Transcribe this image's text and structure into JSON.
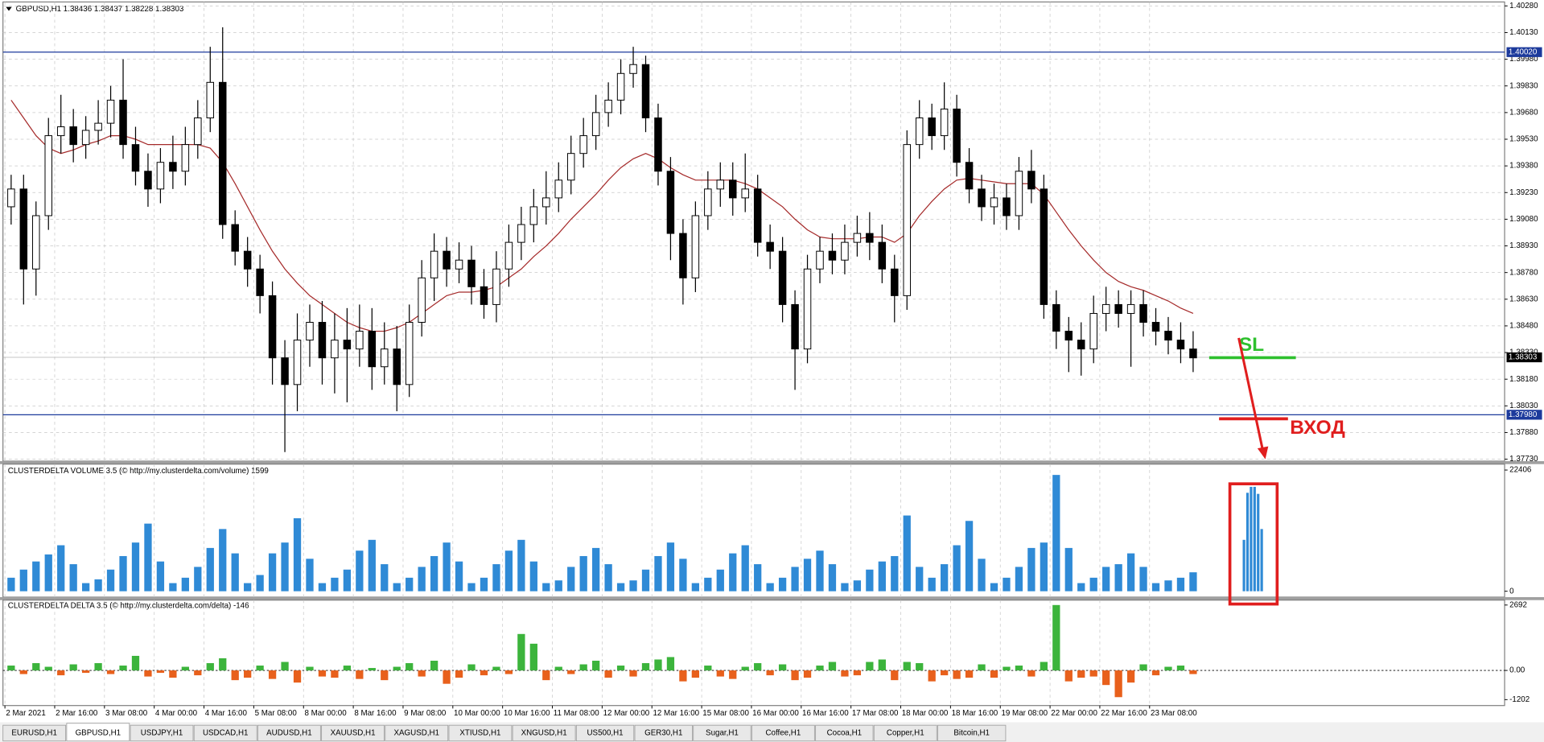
{
  "header": {
    "symbol": "GBPUSD,H1",
    "ohlc": [
      1.38436,
      1.38437,
      1.38228,
      1.38303
    ]
  },
  "chart_data": [
    {
      "type": "candlestick",
      "categories": [
        "2 Mar 2021",
        null,
        null,
        null,
        "2 Mar 16:00",
        null,
        null,
        null,
        "3 Mar 08:00",
        null,
        null,
        null,
        "4 Mar 00:00",
        null,
        null,
        null,
        "4 Mar 16:00",
        null,
        null,
        null,
        "5 Mar 08:00",
        null,
        null,
        null,
        "8 Mar 00:00",
        null,
        null,
        null,
        "8 Mar 16:00",
        null,
        null,
        null,
        "9 Mar 08:00",
        null,
        null,
        null,
        "10 Mar 00:00",
        null,
        null,
        null,
        "10 Mar 16:00",
        null,
        null,
        null,
        "11 Mar 08:00",
        null,
        null,
        null,
        "12 Mar 00:00",
        null,
        null,
        null,
        "12 Mar 16:00",
        null,
        null,
        null,
        "15 Mar 08:00",
        null,
        null,
        null,
        "16 Mar 00:00",
        null,
        null,
        null,
        "16 Mar 16:00",
        null,
        null,
        null,
        "17 Mar 08:00",
        null,
        null,
        null,
        "18 Mar 00:00",
        null,
        null,
        null,
        "18 Mar 16:00",
        null,
        null,
        null,
        "19 Mar 08:00",
        null,
        null,
        null,
        "22 Mar 00:00",
        null,
        null,
        null,
        "22 Mar 16:00",
        null,
        null,
        null,
        "23 Mar 08:00",
        null,
        null,
        null
      ],
      "open": [
        1.3915,
        1.3925,
        1.388,
        1.391,
        1.3955,
        1.396,
        1.395,
        1.3958,
        1.3962,
        1.3975,
        1.395,
        1.3935,
        1.3925,
        1.394,
        1.3935,
        1.395,
        1.3965,
        1.3985,
        1.3905,
        1.389,
        1.388,
        1.3865,
        1.383,
        1.3815,
        1.384,
        1.385,
        1.383,
        1.384,
        1.3835,
        1.3845,
        1.3825,
        1.3835,
        1.3815,
        1.385,
        1.3875,
        1.389,
        1.388,
        1.3885,
        1.387,
        1.386,
        1.388,
        1.3895,
        1.3905,
        1.3915,
        1.392,
        1.393,
        1.3945,
        1.3955,
        1.3968,
        1.3975,
        1.399,
        1.3995,
        1.3965,
        1.3935,
        1.39,
        1.3875,
        1.391,
        1.3925,
        1.393,
        1.392,
        1.3925,
        1.3895,
        1.389,
        1.386,
        1.3835,
        1.388,
        1.389,
        1.3885,
        1.3895,
        1.39,
        1.3895,
        1.388,
        1.3865,
        1.395,
        1.3965,
        1.3955,
        1.397,
        1.394,
        1.3925,
        1.3915,
        1.392,
        1.391,
        1.3935,
        1.3925,
        1.386,
        1.3845,
        1.384,
        1.3835,
        1.3855,
        1.386,
        1.3855,
        1.386,
        1.385,
        1.3845,
        1.384,
        1.3835
      ],
      "high": [
        1.3933,
        1.3933,
        1.3918,
        1.3965,
        1.3978,
        1.397,
        1.3966,
        1.3975,
        1.3983,
        1.3998,
        1.396,
        1.3945,
        1.3948,
        1.3955,
        1.396,
        1.3975,
        1.4005,
        1.4016,
        1.3913,
        1.3898,
        1.3888,
        1.3873,
        1.384,
        1.3855,
        1.386,
        1.3862,
        1.3855,
        1.3858,
        1.386,
        1.3858,
        1.385,
        1.3848,
        1.386,
        1.3885,
        1.39,
        1.3898,
        1.3895,
        1.3893,
        1.388,
        1.389,
        1.3905,
        1.3915,
        1.3925,
        1.3935,
        1.394,
        1.3955,
        1.3965,
        1.3978,
        1.3985,
        1.3998,
        1.4005,
        1.4,
        1.3973,
        1.3943,
        1.3908,
        1.3918,
        1.3935,
        1.394,
        1.394,
        1.3945,
        1.3933,
        1.3905,
        1.3898,
        1.3868,
        1.3888,
        1.3898,
        1.39,
        1.3905,
        1.391,
        1.3912,
        1.3905,
        1.3888,
        1.3958,
        1.3975,
        1.3973,
        1.3985,
        1.3978,
        1.3948,
        1.3933,
        1.3928,
        1.3928,
        1.3943,
        1.3947,
        1.3933,
        1.3868,
        1.3853,
        1.385,
        1.3865,
        1.387,
        1.3868,
        1.3868,
        1.3868,
        1.3858,
        1.3853,
        1.385,
        1.3845
      ],
      "low": [
        1.3905,
        1.386,
        1.3865,
        1.3902,
        1.3945,
        1.394,
        1.3942,
        1.395,
        1.3954,
        1.3942,
        1.3927,
        1.3915,
        1.3917,
        1.3925,
        1.3927,
        1.3942,
        1.3957,
        1.3897,
        1.3882,
        1.387,
        1.3855,
        1.3815,
        1.3777,
        1.38,
        1.3825,
        1.3815,
        1.381,
        1.3805,
        1.3825,
        1.3812,
        1.3815,
        1.38,
        1.3808,
        1.3842,
        1.3862,
        1.387,
        1.3872,
        1.386,
        1.3852,
        1.385,
        1.387,
        1.3885,
        1.3895,
        1.3905,
        1.3912,
        1.3922,
        1.3937,
        1.3947,
        1.396,
        1.3967,
        1.3982,
        1.3957,
        1.3927,
        1.3885,
        1.386,
        1.3867,
        1.3902,
        1.3915,
        1.391,
        1.3912,
        1.3887,
        1.388,
        1.385,
        1.3812,
        1.3827,
        1.3872,
        1.3877,
        1.3877,
        1.3887,
        1.3885,
        1.3872,
        1.385,
        1.3857,
        1.3942,
        1.3947,
        1.3947,
        1.3932,
        1.3917,
        1.3907,
        1.3905,
        1.3902,
        1.3902,
        1.3917,
        1.3852,
        1.3835,
        1.3822,
        1.382,
        1.3827,
        1.3845,
        1.3847,
        1.3825,
        1.3842,
        1.3837,
        1.3832,
        1.3827,
        1.3822
      ],
      "close": [
        1.3925,
        1.388,
        1.391,
        1.3955,
        1.396,
        1.395,
        1.3958,
        1.3962,
        1.3975,
        1.395,
        1.3935,
        1.3925,
        1.394,
        1.3935,
        1.395,
        1.3965,
        1.3985,
        1.3905,
        1.389,
        1.388,
        1.3865,
        1.383,
        1.3815,
        1.384,
        1.385,
        1.383,
        1.384,
        1.3835,
        1.3845,
        1.3825,
        1.3835,
        1.3815,
        1.385,
        1.3875,
        1.389,
        1.388,
        1.3885,
        1.387,
        1.386,
        1.388,
        1.3895,
        1.3905,
        1.3915,
        1.392,
        1.393,
        1.3945,
        1.3955,
        1.3968,
        1.3975,
        1.399,
        1.3995,
        1.3965,
        1.3935,
        1.39,
        1.3875,
        1.391,
        1.3925,
        1.393,
        1.392,
        1.3925,
        1.3895,
        1.389,
        1.386,
        1.3835,
        1.388,
        1.389,
        1.3885,
        1.3895,
        1.39,
        1.3895,
        1.388,
        1.3865,
        1.395,
        1.3965,
        1.3955,
        1.397,
        1.394,
        1.3925,
        1.3915,
        1.392,
        1.391,
        1.3935,
        1.3925,
        1.386,
        1.3845,
        1.384,
        1.3835,
        1.3855,
        1.386,
        1.3855,
        1.386,
        1.385,
        1.3845,
        1.384,
        1.3835,
        1.383
      ],
      "up_color": "#ffffff",
      "down_color": "#000000",
      "wick_color": "#000000",
      "ma": {
        "color": "#a52a2a",
        "values": [
          1.3975,
          1.3965,
          1.3955,
          1.3948,
          1.3945,
          1.3947,
          1.395,
          1.3952,
          1.3955,
          1.3955,
          1.3953,
          1.395,
          1.395,
          1.395,
          1.395,
          1.395,
          1.3948,
          1.394,
          1.3928,
          1.3915,
          1.3902,
          1.389,
          1.388,
          1.3872,
          1.3865,
          1.386,
          1.3855,
          1.385,
          1.3847,
          1.3845,
          1.3845,
          1.3847,
          1.385,
          1.3855,
          1.386,
          1.3865,
          1.3867,
          1.3867,
          1.3868,
          1.387,
          1.3875,
          1.388,
          1.3887,
          1.3893,
          1.39,
          1.3908,
          1.3915,
          1.3922,
          1.393,
          1.3937,
          1.3942,
          1.3945,
          1.3942,
          1.3937,
          1.3933,
          1.393,
          1.393,
          1.393,
          1.393,
          1.3928,
          1.3925,
          1.392,
          1.3915,
          1.3908,
          1.3902,
          1.3898,
          1.3897,
          1.3897,
          1.3897,
          1.3898,
          1.3898,
          1.3895,
          1.39,
          1.391,
          1.3918,
          1.3925,
          1.393,
          1.3931,
          1.393,
          1.3929,
          1.3928,
          1.3928,
          1.3928,
          1.3922,
          1.3912,
          1.3902,
          1.3893,
          1.3885,
          1.3878,
          1.3873,
          1.387,
          1.3868,
          1.3865,
          1.3862,
          1.3858,
          1.3855
        ]
      },
      "ylim": [
        1.3773,
        1.4028
      ],
      "yticks": [
        {
          "value": 1.4028,
          "label": "1.40280"
        },
        {
          "value": 1.4013,
          "label": "1.40130"
        },
        {
          "value": 1.3998,
          "label": "1.39980"
        },
        {
          "value": 1.3983,
          "label": "1.39830"
        },
        {
          "value": 1.3968,
          "label": "1.39680"
        },
        {
          "value": 1.3953,
          "label": "1.39530"
        },
        {
          "value": 1.3938,
          "label": "1.39380"
        },
        {
          "value": 1.3923,
          "label": "1.39230"
        },
        {
          "value": 1.3908,
          "label": "1.39080"
        },
        {
          "value": 1.3893,
          "label": "1.38930"
        },
        {
          "value": 1.3878,
          "label": "1.38780"
        },
        {
          "value": 1.3863,
          "label": "1.38630"
        },
        {
          "value": 1.3848,
          "label": "1.38480"
        },
        {
          "value": 1.3833,
          "label": "1.38330"
        },
        {
          "value": 1.3818,
          "label": "1.38180"
        },
        {
          "value": 1.3803,
          "label": "1.38030"
        },
        {
          "value": 1.3788,
          "label": "1.37880"
        },
        {
          "value": 1.3773,
          "label": "1.37730"
        }
      ],
      "grid": true,
      "levels": [
        {
          "value": 1.4002,
          "label": "1.40020"
        },
        {
          "value": 1.3798,
          "label": "1.37980"
        }
      ],
      "level_color": "#1c3a9c",
      "last_price": 1.38303
    },
    {
      "type": "bar",
      "title": "CLUSTERDELTA VOLUME 3.5 (© http://my.clusterdelta.com/volume) 1599",
      "color": "#2f8ad6",
      "values": [
        2500,
        4000,
        5500,
        6800,
        8500,
        5000,
        1500,
        2200,
        4000,
        6500,
        9000,
        12500,
        5500,
        1500,
        2500,
        4500,
        8000,
        11500,
        7000,
        1500,
        3000,
        7000,
        9000,
        13500,
        6000,
        1500,
        2500,
        4000,
        7500,
        9500,
        5000,
        1500,
        2500,
        4500,
        6500,
        9000,
        5500,
        1500,
        2500,
        5000,
        7500,
        9500,
        5500,
        1500,
        2000,
        4500,
        6500,
        8000,
        5000,
        1500,
        2000,
        4000,
        6500,
        9000,
        6000,
        1500,
        2500,
        4000,
        7000,
        8500,
        5000,
        1500,
        2500,
        4500,
        6000,
        7500,
        5000,
        1500,
        2000,
        4000,
        5500,
        6500,
        14000,
        4500,
        2500,
        5000,
        8500,
        13000,
        6000,
        1500,
        2500,
        4500,
        8000,
        9000,
        21500,
        8000,
        1500,
        2500,
        4500,
        5000,
        7000,
        4500,
        1500,
        2000,
        2500,
        3500
      ],
      "highlight_values": [
        9500,
        18200,
        19300,
        19300,
        18000,
        11500
      ],
      "ylim": [
        0,
        22406
      ],
      "yticks": [
        0,
        22406
      ],
      "grid": false
    },
    {
      "type": "delta",
      "title": "CLUSTERDELTA DELTA 3.5 (© http://my.clusterdelta.com/delta) -146",
      "positive_color": "#3cb43c",
      "negative_color": "#e8601c",
      "values": [
        200,
        -150,
        300,
        150,
        -200,
        250,
        -100,
        300,
        -150,
        200,
        600,
        -250,
        -100,
        -300,
        150,
        -200,
        300,
        500,
        -400,
        -300,
        200,
        -350,
        350,
        -500,
        150,
        -250,
        -300,
        200,
        -350,
        100,
        -400,
        150,
        300,
        -250,
        400,
        -550,
        -300,
        250,
        -200,
        150,
        -150,
        1500,
        1100,
        -400,
        150,
        -150,
        250,
        400,
        -300,
        200,
        -250,
        300,
        450,
        550,
        -450,
        -300,
        200,
        -250,
        -350,
        150,
        300,
        -200,
        250,
        -400,
        -300,
        200,
        350,
        -250,
        -200,
        350,
        450,
        -400,
        350,
        300,
        -450,
        -200,
        -350,
        -300,
        250,
        -300,
        150,
        200,
        -250,
        350,
        2692,
        -450,
        -300,
        -250,
        -600,
        -1100,
        -500,
        250,
        -200,
        150,
        200,
        -150
      ],
      "ylim": [
        -1202,
        2692
      ],
      "yticks": [
        2692,
        {
          "value": 0,
          "label": "0.00"
        },
        -1202
      ],
      "grid": false
    }
  ],
  "annotations": {
    "sl": "SL",
    "entry": "ВХОД"
  },
  "tabs": [
    "EURUSD,H1",
    "GBPUSD,H1",
    "USDJPY,H1",
    "USDCAD,H1",
    "AUDUSD,H1",
    "XAUUSD,H1",
    "XAGUSD,H1",
    "XTIUSD,H1",
    "XNGUSD,H1",
    "US500,H1",
    "GER30,H1",
    "Sugar,H1",
    "Coffee,H1",
    "Cocoa,H1",
    "Copper,H1",
    "Bitcoin,H1"
  ],
  "active_tab": 1
}
